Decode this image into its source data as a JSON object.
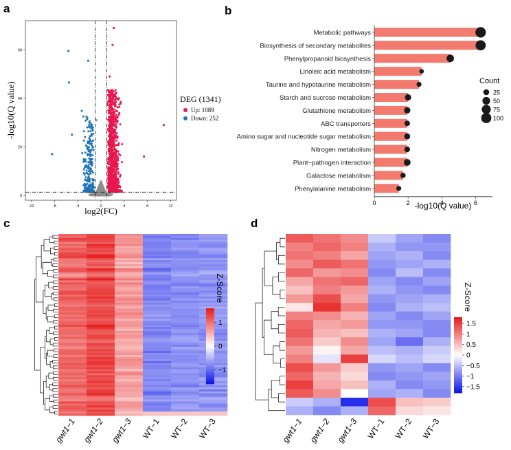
{
  "panels": {
    "a": "a",
    "b": "b",
    "c": "c",
    "d": "d"
  },
  "colors": {
    "up": "#e8174f",
    "down": "#1f74b6",
    "ns": "#8c8c8c",
    "bar": "#f27a6f",
    "dot": "#1a1a1a",
    "heat_low": "#0a14e6",
    "heat_mid": "#ffffff",
    "heat_high": "#e61a1a"
  },
  "chart_data": [
    {
      "id": "volcano",
      "type": "scatter",
      "title": "",
      "xlabel": "log2(FC)",
      "ylabel": "-log10(Q value)",
      "xlim": [
        -13,
        13
      ],
      "ylim": [
        -2,
        72
      ],
      "x_ticks": [
        -12,
        -8,
        -4,
        0,
        4,
        8,
        12
      ],
      "y_ticks": [
        0,
        20,
        40,
        60
      ],
      "fc_thresholds": [
        -1,
        1
      ],
      "q_threshold": 1.3,
      "legend": {
        "title": "DEG (1341)",
        "items": [
          {
            "label": "Up: 1089",
            "color": "up"
          },
          {
            "label": "Down: 252",
            "color": "down"
          }
        ]
      },
      "series": [
        {
          "name": "Up",
          "count": 1089
        },
        {
          "name": "Down",
          "count": 252
        }
      ],
      "highlight_points": [
        {
          "x": 2.2,
          "y": 69
        },
        {
          "x": 2.0,
          "y": 62
        },
        {
          "x": -5.6,
          "y": 59.5
        },
        {
          "x": -2.2,
          "y": 55.5
        },
        {
          "x": -5.5,
          "y": 46.5
        },
        {
          "x": 10.8,
          "y": 29
        },
        {
          "x": -1.4,
          "y": 28
        },
        {
          "x": -5.0,
          "y": 25
        },
        {
          "x": -8.4,
          "y": 17
        },
        {
          "x": 7.4,
          "y": 16
        },
        {
          "x": -0.8,
          "y": 31
        },
        {
          "x": 1.5,
          "y": 49
        }
      ]
    },
    {
      "id": "kegg",
      "type": "bar",
      "xlabel": "-log10(Q value)",
      "x_ticks": [
        0,
        2,
        4,
        6
      ],
      "xlim": [
        0,
        7
      ],
      "categories": [
        "Metabolic pathways",
        "Biosynthesis of secondary metabolites",
        "Phenylpropanoid biosynthesis",
        "Linoleic acid metabolism",
        "Taurine and hypotaurine metabolism",
        "Starch and sucrose metabolism",
        "Glutathione metabolism",
        "ABC transporters",
        "Amino sugar and nucleotide sugar metabolism",
        "Nitrogen metabolism",
        "Plant−pathogen interaction",
        "Galactose metabolism",
        "Phenylalanine metabolism"
      ],
      "values": [
        6.3,
        6.3,
        4.5,
        2.8,
        2.65,
        2.0,
        1.95,
        1.95,
        1.95,
        1.95,
        1.95,
        1.7,
        1.45
      ],
      "counts": [
        105,
        100,
        45,
        12,
        15,
        30,
        30,
        20,
        25,
        22,
        35,
        18,
        15
      ],
      "size_legend": {
        "title": "Count",
        "labels": [
          "25",
          "50",
          "75",
          "100"
        ],
        "values": [
          25,
          50,
          75,
          100
        ]
      }
    },
    {
      "id": "heatmap_c",
      "type": "heatmap",
      "columns": [
        "gwt1−1",
        "gwt1−2",
        "gwt1−3",
        "WT−1",
        "WT−2",
        "WT−3"
      ],
      "column_means": [
        1.05,
        1.25,
        0.65,
        -0.8,
        -0.75,
        -0.72
      ],
      "rows": 90,
      "legend": {
        "title": "Z-Score",
        "labels": [
          "1",
          "0",
          "−1"
        ],
        "values": [
          1,
          0,
          -1
        ],
        "range": [
          -1.6,
          1.6
        ]
      }
    },
    {
      "id": "heatmap_d",
      "type": "heatmap",
      "columns": [
        "gwt1−1",
        "gwt1−2",
        "gwt1−3",
        "WT−1",
        "WT−2",
        "WT−3"
      ],
      "rows": 21,
      "matrix": [
        [
          1.3,
          1.1,
          0.9,
          -0.4,
          -0.7,
          -0.9
        ],
        [
          1.0,
          1.2,
          1.0,
          -0.6,
          -0.8,
          -0.8
        ],
        [
          1.1,
          1.0,
          0.7,
          -0.7,
          -0.6,
          -0.9
        ],
        [
          0.9,
          1.3,
          1.1,
          -0.8,
          -0.7,
          -0.6
        ],
        [
          1.2,
          0.8,
          0.9,
          -0.9,
          -0.5,
          -0.9
        ],
        [
          0.7,
          1.1,
          1.2,
          -0.7,
          -0.9,
          -0.7
        ],
        [
          0.5,
          1.0,
          0.8,
          -0.6,
          -0.8,
          -0.9
        ],
        [
          0.8,
          1.4,
          0.7,
          -0.8,
          -0.7,
          -0.6
        ],
        [
          0.2,
          1.6,
          1.0,
          -0.9,
          -0.6,
          -0.5
        ],
        [
          1.0,
          0.9,
          0.6,
          -0.7,
          -0.9,
          -0.7
        ],
        [
          1.2,
          0.7,
          0.8,
          -0.8,
          -0.8,
          -0.9
        ],
        [
          1.3,
          0.6,
          0.5,
          -0.6,
          -0.7,
          -0.9
        ],
        [
          1.1,
          0.4,
          0.9,
          -0.7,
          -1.1,
          -0.6
        ],
        [
          0.8,
          0.1,
          0.7,
          -0.5,
          -0.6,
          -0.4
        ],
        [
          1.0,
          -0.2,
          1.5,
          -0.3,
          -0.5,
          -0.3
        ],
        [
          1.4,
          0.8,
          0.4,
          -0.8,
          -0.7,
          -0.9
        ],
        [
          1.2,
          0.6,
          0.3,
          -0.9,
          -0.8,
          -0.7
        ],
        [
          1.5,
          0.7,
          0.5,
          -0.6,
          -0.9,
          -0.8
        ],
        [
          1.3,
          0.9,
          0.0,
          -0.7,
          -0.6,
          -0.9
        ],
        [
          -0.4,
          -0.6,
          -1.6,
          1.4,
          0.5,
          0.4
        ],
        [
          -0.6,
          -0.9,
          -0.6,
          1.2,
          0.3,
          0.2
        ]
      ],
      "legend": {
        "title": "Z-Score",
        "labels": [
          "1.5",
          "1",
          "0.5",
          "0",
          "−0.5",
          "−1",
          "−1.5"
        ],
        "values": [
          1.5,
          1,
          0.5,
          0,
          -0.5,
          -1,
          -1.5
        ],
        "range": [
          -1.8,
          1.8
        ]
      }
    }
  ]
}
